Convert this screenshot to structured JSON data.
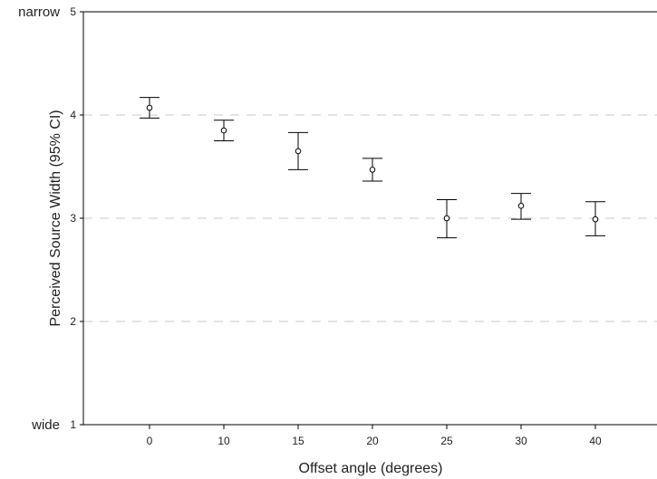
{
  "chart_data": {
    "type": "errorbar",
    "xlabel": "Offset angle (degrees)",
    "ylabel": "Perceived Source Width (95% CI)",
    "ylim": [
      1,
      5
    ],
    "yticks": [
      "1",
      "2",
      "3",
      "4",
      "5"
    ],
    "y_end_labels": {
      "top": "narrow",
      "bottom": "wide"
    },
    "grid": "horizontal dashed",
    "categories": [
      "0",
      "10",
      "15",
      "20",
      "25",
      "30",
      "40"
    ],
    "means": [
      4.07,
      3.85,
      3.65,
      3.47,
      3.0,
      3.12,
      2.99
    ],
    "ci_low": [
      3.97,
      3.75,
      3.47,
      3.36,
      2.81,
      2.99,
      2.83
    ],
    "ci_high": [
      4.17,
      3.95,
      3.83,
      3.58,
      3.18,
      3.24,
      3.16
    ],
    "colors": {
      "marks": "#000000",
      "grid": "#c8c8c8"
    }
  }
}
